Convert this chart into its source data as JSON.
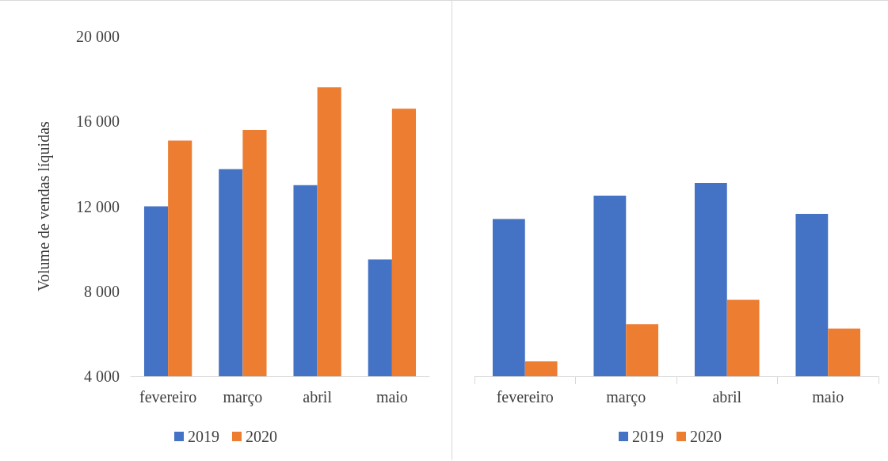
{
  "chart_data": [
    {
      "type": "bar",
      "ylabel": "Volume de vendas líquidas",
      "categories": [
        "fevereiro",
        "março",
        "abril",
        "maio"
      ],
      "series": [
        {
          "name": "2019",
          "color": "#4472c4",
          "values": [
            12000,
            13750,
            13000,
            9500
          ]
        },
        {
          "name": "2020",
          "color": "#ed7d31",
          "values": [
            15100,
            15600,
            17600,
            16600
          ]
        }
      ],
      "ylim": [
        4000,
        20000
      ],
      "yticks": [
        {
          "value": 4000,
          "label": "4 000"
        },
        {
          "value": 8000,
          "label": "8 000"
        },
        {
          "value": 12000,
          "label": "12 000"
        },
        {
          "value": 16000,
          "label": "16 000"
        },
        {
          "value": 20000,
          "label": "20 000"
        }
      ],
      "grid": false,
      "legend": "bottom"
    },
    {
      "type": "bar",
      "categories": [
        "fevereiro",
        "março",
        "abril",
        "maio"
      ],
      "series": [
        {
          "name": "2019",
          "color": "#4472c4",
          "values": [
            11400,
            12500,
            13100,
            11650
          ]
        },
        {
          "name": "2020",
          "color": "#ed7d31",
          "values": [
            4700,
            6450,
            7600,
            6250
          ]
        }
      ],
      "ylim": [
        4000,
        20000
      ],
      "grid": false,
      "legend": "bottom",
      "tick_labels": "x"
    }
  ]
}
